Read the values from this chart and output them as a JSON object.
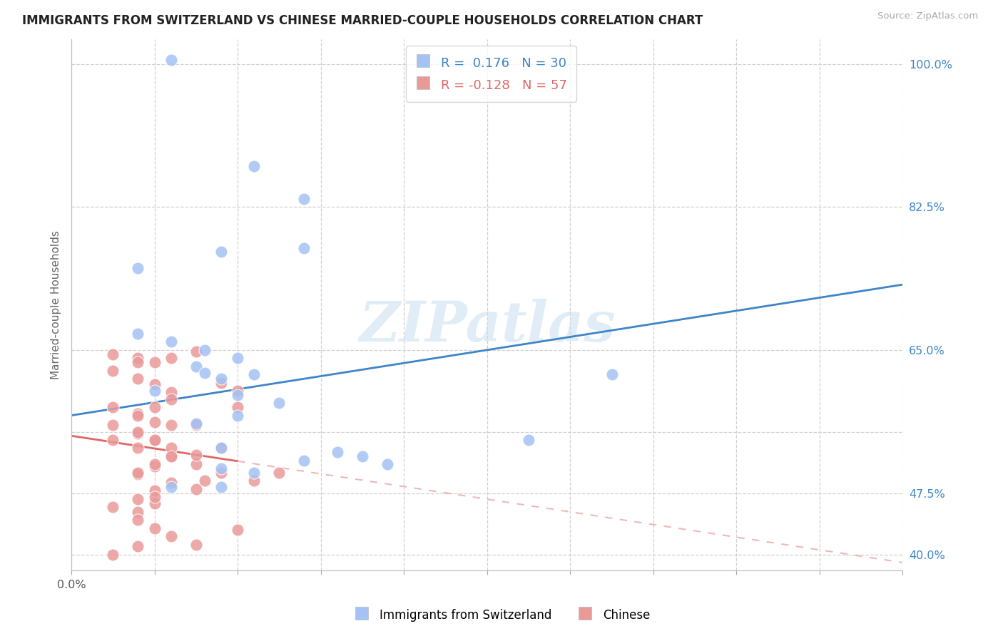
{
  "title": "IMMIGRANTS FROM SWITZERLAND VS CHINESE MARRIED-COUPLE HOUSEHOLDS CORRELATION CHART",
  "source": "Source: ZipAtlas.com",
  "ylabel": "Married-couple Households",
  "watermark": "ZIPatlas",
  "legend1_R": "0.176",
  "legend1_N": "30",
  "legend2_R": "-0.128",
  "legend2_N": "57",
  "blue_color": "#a4c2f4",
  "pink_color": "#ea9999",
  "blue_line_color": "#3d85c8",
  "pink_line_color": "#e06666",
  "blue_x": [
    0.0012,
    0.0022,
    0.0028,
    0.0028,
    0.0018,
    0.0008,
    0.0008,
    0.0012,
    0.0016,
    0.002,
    0.0015,
    0.0016,
    0.0022,
    0.0018,
    0.001,
    0.002,
    0.0025,
    0.002,
    0.0015,
    0.0018,
    0.0032,
    0.0035,
    0.0028,
    0.0018,
    0.0022,
    0.0012,
    0.0018,
    0.0055,
    0.0065,
    0.0038
  ],
  "blue_y": [
    1.005,
    0.875,
    0.835,
    0.775,
    0.77,
    0.75,
    0.67,
    0.66,
    0.65,
    0.64,
    0.63,
    0.622,
    0.62,
    0.615,
    0.6,
    0.595,
    0.585,
    0.57,
    0.56,
    0.53,
    0.525,
    0.52,
    0.515,
    0.505,
    0.5,
    0.482,
    0.482,
    0.54,
    0.62,
    0.51
  ],
  "pink_x": [
    0.0005,
    0.0008,
    0.001,
    0.0012,
    0.0008,
    0.0005,
    0.0008,
    0.001,
    0.0012,
    0.0005,
    0.0008,
    0.001,
    0.0012,
    0.0008,
    0.0005,
    0.001,
    0.0008,
    0.0012,
    0.0015,
    0.001,
    0.0008,
    0.0018,
    0.0016,
    0.0012,
    0.001,
    0.0008,
    0.0005,
    0.001,
    0.0008,
    0.0015,
    0.0012,
    0.001,
    0.0008,
    0.0005,
    0.0018,
    0.002,
    0.0012,
    0.001,
    0.0008,
    0.0015,
    0.0018,
    0.0012,
    0.001,
    0.0008,
    0.0022,
    0.0015,
    0.001,
    0.0025,
    0.002,
    0.0015,
    0.0008,
    0.001,
    0.0012,
    0.0015,
    0.002,
    0.0005,
    0.0008
  ],
  "pink_y": [
    0.645,
    0.64,
    0.635,
    0.64,
    0.635,
    0.625,
    0.615,
    0.608,
    0.598,
    0.58,
    0.572,
    0.562,
    0.558,
    0.548,
    0.54,
    0.54,
    0.53,
    0.52,
    0.51,
    0.508,
    0.498,
    0.5,
    0.49,
    0.488,
    0.478,
    0.468,
    0.458,
    0.462,
    0.452,
    0.522,
    0.53,
    0.54,
    0.55,
    0.558,
    0.61,
    0.6,
    0.59,
    0.58,
    0.57,
    0.558,
    0.53,
    0.52,
    0.51,
    0.5,
    0.49,
    0.48,
    0.47,
    0.5,
    0.58,
    0.648,
    0.442,
    0.432,
    0.422,
    0.412,
    0.43,
    0.4,
    0.41
  ],
  "xmin": 0.0,
  "xmax": 0.01,
  "ymin": 0.38,
  "ymax": 1.03,
  "blue_trend_y0": 0.57,
  "blue_trend_y1": 0.73,
  "pink_trend_y0": 0.545,
  "pink_trend_y1": 0.39,
  "x_ticks": [
    0.0,
    0.001,
    0.002,
    0.003,
    0.004,
    0.005,
    0.006,
    0.007,
    0.008,
    0.009,
    0.01
  ],
  "y_gridlines": [
    1.0,
    0.825,
    0.65,
    0.55,
    0.475,
    0.4
  ],
  "right_yticks": [
    1.0,
    0.825,
    0.65,
    0.55,
    0.475,
    0.4
  ],
  "right_ylabels": [
    "100.0%",
    "82.5%",
    "65.0%",
    "",
    "47.5%",
    "40.0%"
  ],
  "bottom_legend1": "Immigrants from Switzerland",
  "bottom_legend2": "Chinese"
}
